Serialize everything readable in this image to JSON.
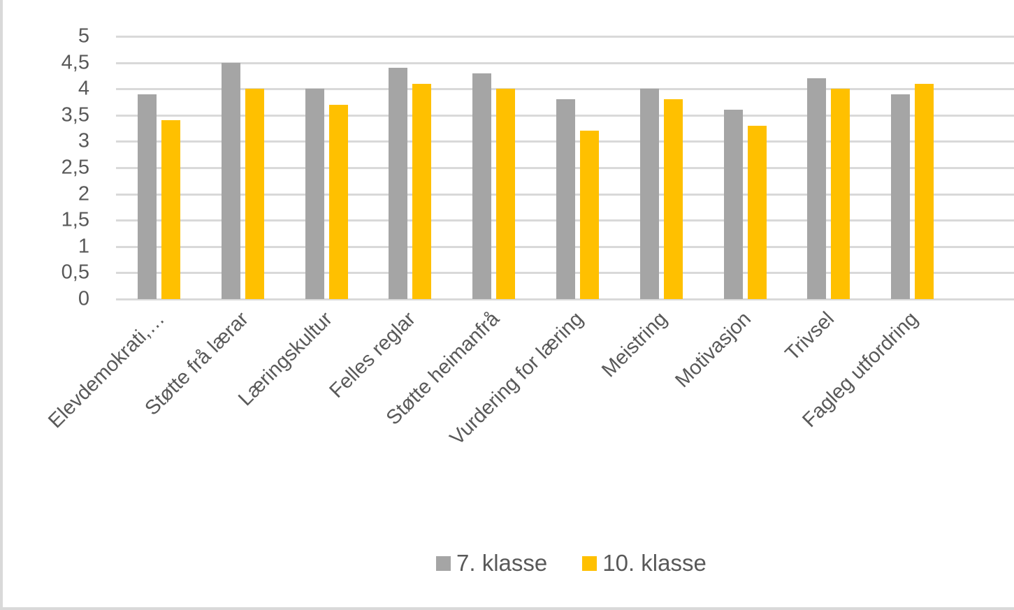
{
  "chart_data": {
    "type": "bar",
    "title": "",
    "xlabel": "",
    "ylabel": "",
    "ylim": [
      0,
      5
    ],
    "yticks": [
      "0",
      "0,5",
      "1",
      "1,5",
      "2",
      "2,5",
      "3",
      "3,5",
      "4",
      "4,5",
      "5"
    ],
    "grid": true,
    "legend_position": "bottom",
    "categories": [
      "Elevdemokrati,…",
      "Støtte frå lærar",
      "Læringskultur",
      "Felles reglar",
      "Støtte heimanfrå",
      "Vurdering for læring",
      "Meistring",
      "Motivasjon",
      "Trivsel",
      "Fagleg utfordring"
    ],
    "series": [
      {
        "name": "7. klasse",
        "color": "#a5a5a5",
        "values": [
          3.9,
          4.5,
          4.0,
          4.4,
          4.3,
          3.8,
          4.0,
          3.6,
          4.2,
          3.9
        ]
      },
      {
        "name": "10. klasse",
        "color": "#ffc000",
        "values": [
          3.4,
          4.0,
          3.7,
          4.1,
          4.0,
          3.2,
          3.8,
          3.3,
          4.0,
          4.1
        ]
      }
    ]
  }
}
